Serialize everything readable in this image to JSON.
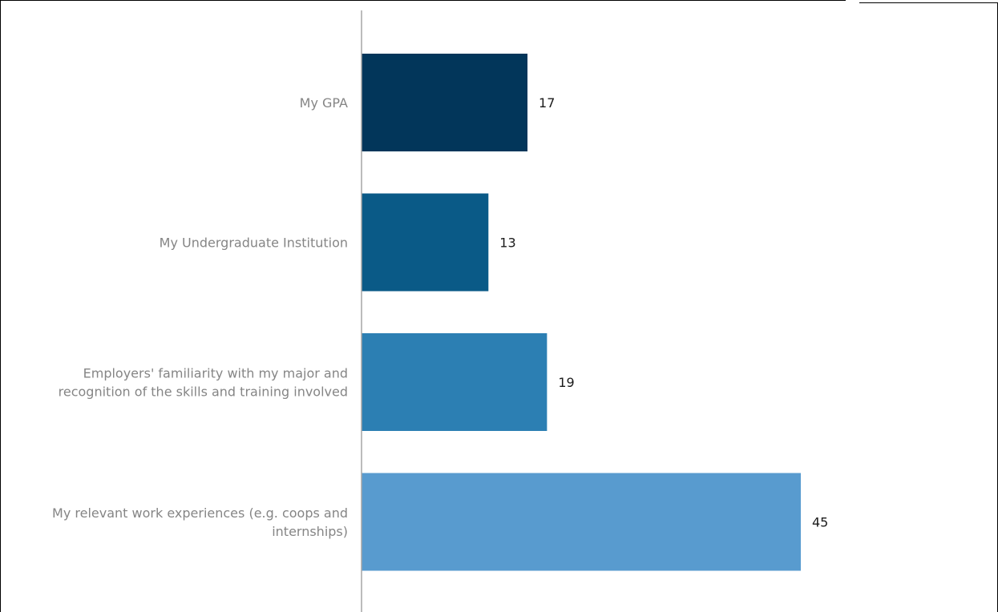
{
  "chart_data": {
    "type": "bar",
    "orientation": "horizontal",
    "categories": [
      [
        "My GPA"
      ],
      [
        "My Undergraduate Institution"
      ],
      [
        "Employers' familiarity with my major and",
        "recognition of the skills and training involved"
      ],
      [
        "My relevant work experiences (e.g. coops and",
        "internships)"
      ]
    ],
    "values": [
      17,
      13,
      19,
      45
    ],
    "value_labels": [
      "17",
      "13",
      "19",
      "45"
    ],
    "bar_colors": [
      "#02365a",
      "#0a5a87",
      "#2c7fb3",
      "#589bcf"
    ],
    "title": "",
    "xlabel": "",
    "ylabel": "",
    "xlim": [
      0,
      45
    ],
    "grid": false,
    "legend": "none"
  },
  "colors": {
    "axis": "#a6a6a6",
    "category_text": "#858585",
    "value_text": "#1a1a1a",
    "frame": "#000000"
  }
}
